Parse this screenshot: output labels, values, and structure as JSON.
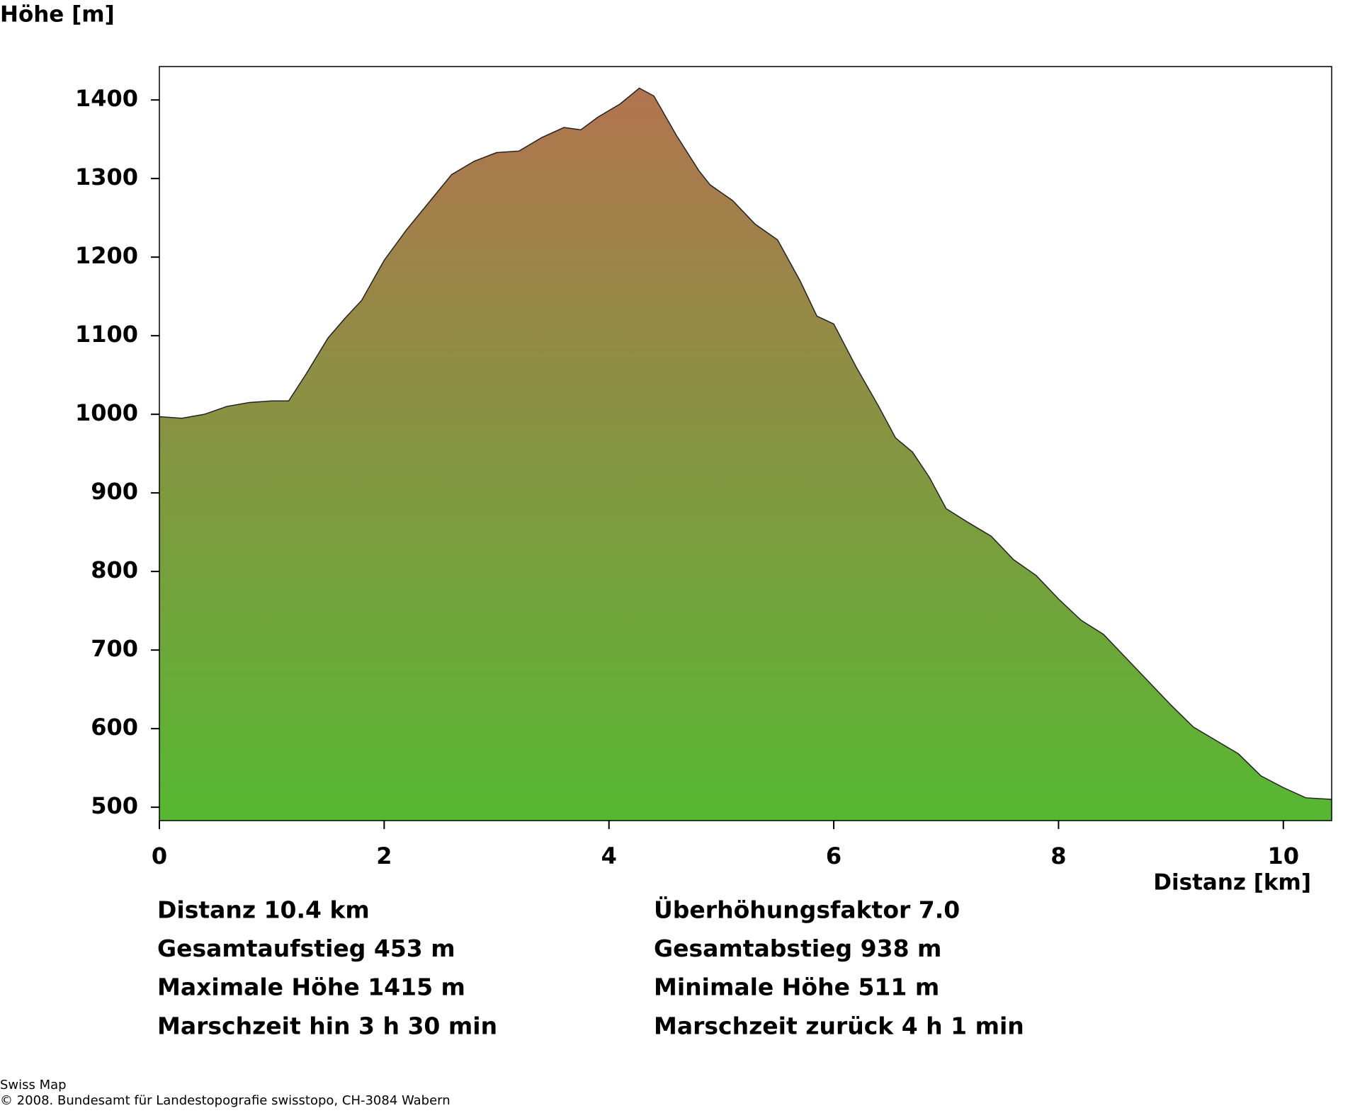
{
  "chart_data": {
    "type": "area",
    "title": "Höhe [m]",
    "xlabel": "Distanz [km]",
    "x": [
      0,
      0.2,
      0.4,
      0.6,
      0.8,
      1.0,
      1.15,
      1.3,
      1.5,
      1.65,
      1.8,
      2.0,
      2.2,
      2.4,
      2.6,
      2.8,
      3.0,
      3.2,
      3.4,
      3.6,
      3.75,
      3.9,
      4.1,
      4.27,
      4.4,
      4.6,
      4.8,
      4.9,
      5.1,
      5.3,
      5.5,
      5.7,
      5.85,
      6.0,
      6.2,
      6.4,
      6.55,
      6.7,
      6.85,
      7.0,
      7.2,
      7.4,
      7.6,
      7.8,
      8.0,
      8.2,
      8.4,
      8.6,
      8.8,
      9.0,
      9.2,
      9.4,
      9.6,
      9.8,
      10.0,
      10.2,
      10.43
    ],
    "values": [
      997,
      995,
      1000,
      1010,
      1015,
      1017,
      1017,
      1050,
      1097,
      1122,
      1145,
      1196,
      1235,
      1270,
      1305,
      1322,
      1333,
      1335,
      1352,
      1365,
      1362,
      1378,
      1395,
      1415,
      1405,
      1355,
      1310,
      1292,
      1272,
      1242,
      1222,
      1170,
      1125,
      1115,
      1060,
      1010,
      970,
      952,
      920,
      880,
      862,
      845,
      815,
      795,
      765,
      738,
      720,
      690,
      660,
      630,
      602,
      585,
      568,
      540,
      525,
      512,
      510
    ],
    "gradient": [
      "#b2744f",
      "#56b832"
    ],
    "xlim": [
      0,
      10.43
    ],
    "ylim": [
      483,
      1442.5
    ],
    "xticks": [
      0,
      2,
      4,
      6,
      8,
      10
    ],
    "yticks": [
      500,
      600,
      700,
      800,
      900,
      1000,
      1100,
      1200,
      1300,
      1400
    ],
    "stats": [
      [
        "Distanz 10.4 km",
        "Überhöhungsfaktor 7.0"
      ],
      [
        "Gesamtaufstieg  453 m",
        "Gesamtabstieg  938 m"
      ],
      [
        "Maximale Höhe  1415 m",
        "Minimale Höhe  511 m"
      ],
      [
        "Marschzeit hin  3 h 30 min",
        "Marschzeit zurück  4 h 1 min"
      ]
    ],
    "footer": [
      "Swiss Map",
      "© 2008. Bundesamt für Landestopografie swisstopo, CH-3084 Wabern"
    ]
  }
}
